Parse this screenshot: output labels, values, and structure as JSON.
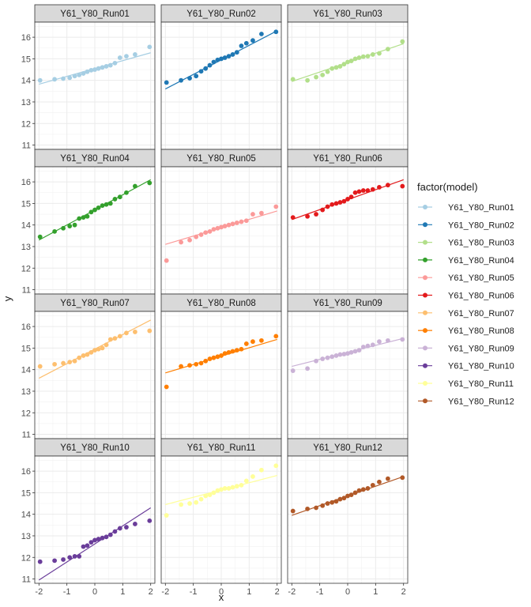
{
  "chart_data": {
    "type": "scatter",
    "xlabel": "x",
    "ylabel": "y",
    "xlim": [
      -2.15,
      2.15
    ],
    "ylim": [
      10.8,
      16.7
    ],
    "x_ticks": [
      -2,
      -1,
      0,
      1,
      2
    ],
    "y_ticks": [
      11,
      12,
      13,
      14,
      15,
      16
    ],
    "grid": true,
    "facet_layout": "4 rows x 3 columns, shared axes",
    "legend": {
      "title": "factor(model)",
      "placement": "right"
    },
    "x": [
      -1.96,
      -1.44,
      -1.13,
      -0.9,
      -0.72,
      -0.56,
      -0.41,
      -0.27,
      -0.13,
      0.0,
      0.13,
      0.27,
      0.41,
      0.56,
      0.72,
      0.9,
      1.13,
      1.44,
      1.96
    ],
    "series": [
      {
        "name": "Y61_Y80_Run01",
        "color": "#A6CEE3",
        "line": [
          13.82,
          15.28
        ],
        "values": [
          14.0,
          14.05,
          14.08,
          14.12,
          14.2,
          14.25,
          14.32,
          14.4,
          14.47,
          14.5,
          14.55,
          14.6,
          14.65,
          14.7,
          14.8,
          15.05,
          15.12,
          15.2,
          15.55
        ]
      },
      {
        "name": "Y61_Y80_Run02",
        "color": "#1F78B4",
        "line": [
          13.6,
          16.3
        ],
        "values": [
          13.9,
          14.0,
          14.1,
          14.2,
          14.42,
          14.55,
          14.7,
          14.85,
          14.95,
          15.0,
          15.05,
          15.12,
          15.2,
          15.3,
          15.6,
          15.72,
          15.85,
          16.15,
          16.25
        ]
      },
      {
        "name": "Y61_Y80_Run03",
        "color": "#B2DF8A",
        "line": [
          13.95,
          15.7
        ],
        "values": [
          14.05,
          14.0,
          14.15,
          14.25,
          14.4,
          14.55,
          14.6,
          14.65,
          14.75,
          14.85,
          14.9,
          15.0,
          15.05,
          15.1,
          15.12,
          15.2,
          15.25,
          15.45,
          15.8
        ]
      },
      {
        "name": "Y61_Y80_Run04",
        "color": "#33A02C",
        "line": [
          13.3,
          16.1
        ],
        "values": [
          13.45,
          13.7,
          13.85,
          13.95,
          14.0,
          14.3,
          14.35,
          14.4,
          14.6,
          14.7,
          14.8,
          14.9,
          14.95,
          15.0,
          15.2,
          15.3,
          15.5,
          15.8,
          15.95
        ]
      },
      {
        "name": "Y61_Y80_Run05",
        "color": "#FB9A99",
        "line": [
          13.1,
          14.65
        ],
        "values": [
          12.35,
          13.2,
          13.3,
          13.45,
          13.55,
          13.65,
          13.7,
          13.8,
          13.85,
          13.9,
          13.95,
          14.0,
          14.05,
          14.1,
          14.15,
          14.2,
          14.5,
          14.55,
          14.85
        ]
      },
      {
        "name": "Y61_Y80_Run06",
        "color": "#E31A1C",
        "line": [
          14.25,
          16.1
        ],
        "values": [
          14.35,
          14.4,
          14.5,
          14.7,
          14.85,
          14.95,
          15.0,
          15.05,
          15.1,
          15.2,
          15.3,
          15.5,
          15.55,
          15.6,
          15.6,
          15.65,
          15.75,
          15.85,
          15.8
        ]
      },
      {
        "name": "Y61_Y80_Run07",
        "color": "#FDBF6F",
        "line": [
          13.6,
          16.3
        ],
        "values": [
          14.15,
          14.25,
          14.3,
          14.35,
          14.4,
          14.55,
          14.65,
          14.7,
          14.8,
          14.9,
          14.95,
          15.0,
          15.15,
          15.4,
          15.45,
          15.55,
          15.7,
          15.75,
          15.8
        ]
      },
      {
        "name": "Y61_Y80_Run08",
        "color": "#FF7F00",
        "line": [
          13.85,
          15.4
        ],
        "values": [
          13.2,
          14.15,
          14.2,
          14.25,
          14.3,
          14.4,
          14.5,
          14.55,
          14.6,
          14.65,
          14.75,
          14.8,
          14.85,
          14.9,
          14.95,
          15.2,
          15.3,
          15.35,
          15.55
        ]
      },
      {
        "name": "Y61_Y80_Run09",
        "color": "#CAB2D6",
        "line": [
          14.15,
          15.45
        ],
        "values": [
          13.95,
          14.05,
          14.4,
          14.5,
          14.55,
          14.6,
          14.65,
          14.7,
          14.72,
          14.75,
          14.8,
          14.85,
          14.9,
          15.05,
          15.1,
          15.15,
          15.3,
          15.35,
          15.4
        ]
      },
      {
        "name": "Y61_Y80_Run10",
        "color": "#6A3D9A",
        "line": [
          10.95,
          14.3
        ],
        "values": [
          11.8,
          11.85,
          11.9,
          12.0,
          12.05,
          12.05,
          12.5,
          12.55,
          12.7,
          12.8,
          12.85,
          12.9,
          12.95,
          13.05,
          13.2,
          13.35,
          13.4,
          13.55,
          13.7
        ]
      },
      {
        "name": "Y61_Y80_Run11",
        "color": "#FFFF99",
        "line": [
          14.45,
          15.8
        ],
        "values": [
          13.95,
          14.45,
          14.5,
          14.55,
          14.7,
          14.85,
          14.9,
          15.0,
          15.1,
          15.15,
          15.2,
          15.2,
          15.25,
          15.3,
          15.35,
          15.55,
          15.75,
          16.05,
          16.25
        ]
      },
      {
        "name": "Y61_Y80_Run12",
        "color": "#B15928",
        "line": [
          13.95,
          15.75
        ],
        "values": [
          14.15,
          14.25,
          14.3,
          14.4,
          14.5,
          14.55,
          14.6,
          14.7,
          14.75,
          14.85,
          14.9,
          15.0,
          15.1,
          15.15,
          15.2,
          15.35,
          15.5,
          15.65,
          15.7
        ]
      }
    ]
  }
}
